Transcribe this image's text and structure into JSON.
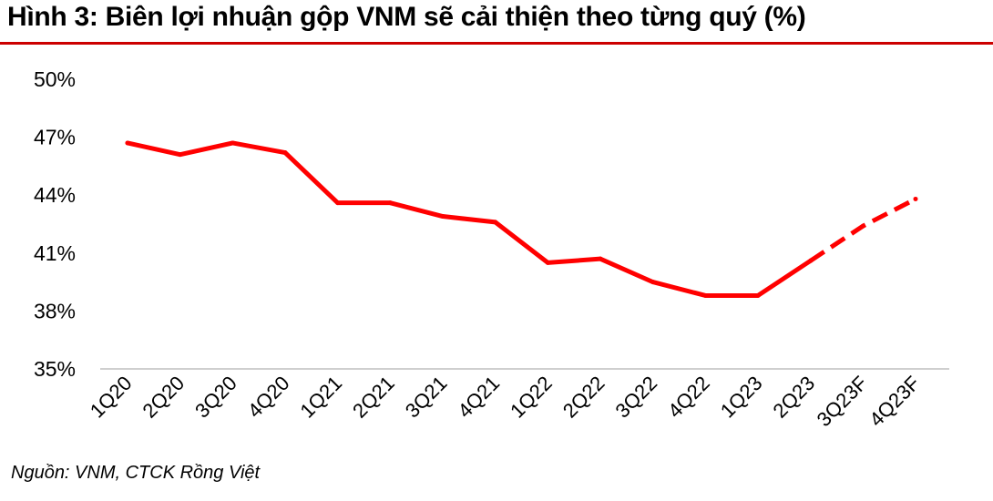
{
  "header": {
    "title": "Hình 3: Biên lợi nhuận gộp VNM sẽ cải thiện theo từng quý (%)"
  },
  "footer": {
    "source": "Nguồn: VNM, CTCK Rồng Việt"
  },
  "chart_data": {
    "type": "line",
    "title": "Hình 3: Biên lợi nhuận gộp VNM sẽ cải thiện theo từng quý (%)",
    "xlabel": "",
    "ylabel": "",
    "categories": [
      "1Q20",
      "2Q20",
      "3Q20",
      "4Q20",
      "1Q21",
      "2Q21",
      "3Q21",
      "4Q21",
      "1Q22",
      "2Q22",
      "3Q22",
      "4Q22",
      "1Q23",
      "2Q23",
      "3Q23F",
      "4Q23F"
    ],
    "series": [
      {
        "values": [
          46.7,
          46.1,
          46.7,
          46.2,
          43.6,
          43.6,
          42.9,
          42.6,
          40.5,
          40.7,
          39.5,
          38.8,
          38.8,
          40.6,
          42.4,
          43.8
        ]
      }
    ],
    "forecast_start_index": 13,
    "y_ticks": [
      "35%",
      "38%",
      "41%",
      "44%",
      "47%",
      "50%"
    ],
    "y_tick_values": [
      35,
      38,
      41,
      44,
      47,
      50
    ],
    "ylim": [
      35,
      50
    ],
    "grid": false,
    "legend": "none",
    "colors": {
      "line": "#ff0000",
      "axis": "#bfbfbf",
      "rule": "#cc0000"
    }
  }
}
